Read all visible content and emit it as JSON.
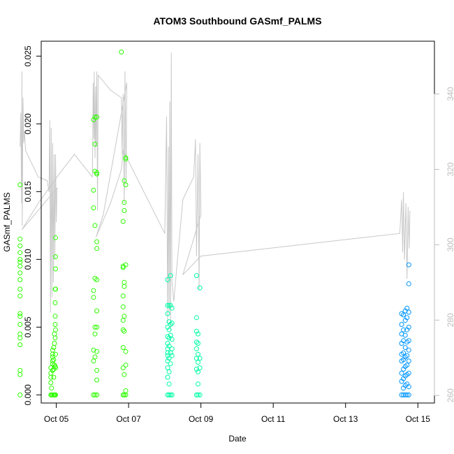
{
  "chart_data": {
    "type": "scatter",
    "title": "ATOM3 Southbound GASmf_PALMS",
    "xlabel": "Date",
    "ylabel": "GASmf_PALMS",
    "x_unit": "days since Oct 04 00:00 (date axis)",
    "xlim": [
      "Oct 04 14:00",
      "Oct 15 11:00"
    ],
    "x_ticks": [
      {
        "label": "Oct 05",
        "value": 1
      },
      {
        "label": "Oct 07",
        "value": 3
      },
      {
        "label": "Oct 09",
        "value": 5
      },
      {
        "label": "Oct 11",
        "value": 7
      },
      {
        "label": "Oct 13",
        "value": 9
      },
      {
        "label": "Oct 15",
        "value": 11
      }
    ],
    "ylim": [
      -0.0006,
      0.0261
    ],
    "y_ticks": [
      0.0,
      0.005,
      0.01,
      0.015,
      0.02,
      0.025
    ],
    "y_tick_labels": [
      "0.000",
      "0.005",
      "0.010",
      "0.015",
      "0.020",
      "0.025"
    ],
    "right_axis": {
      "ylim": [
        258,
        354
      ],
      "ticks": [
        260,
        280,
        300,
        320,
        340
      ],
      "color": "#bebebe"
    },
    "grid": false,
    "legend": "none",
    "series": [
      {
        "color": "#2dff00",
        "points": [
          [
            0.0,
            0.0155
          ],
          [
            0.0,
            0.0115
          ],
          [
            0.0,
            0.011
          ],
          [
            0.0,
            0.0105
          ],
          [
            0.0,
            0.01
          ],
          [
            0.0,
            0.0098
          ],
          [
            0.0,
            0.0095
          ],
          [
            0.0,
            0.009
          ],
          [
            0.0,
            0.0085
          ],
          [
            0.0,
            0.0078
          ],
          [
            0.0,
            0.0073
          ],
          [
            0.0,
            0.006
          ],
          [
            0.0,
            0.0058
          ],
          [
            0.0,
            0.0052
          ],
          [
            0.0,
            0.0045
          ],
          [
            0.0,
            0.0042
          ],
          [
            0.0,
            0.0037
          ],
          [
            0.0,
            0.0018
          ],
          [
            0.0,
            0.0015
          ],
          [
            0.0,
            0.0
          ],
          [
            0.85,
            0.0009
          ],
          [
            0.85,
            0.0013
          ],
          [
            0.85,
            0.0016
          ],
          [
            0.85,
            0.002
          ],
          [
            0.85,
            0.0
          ],
          [
            0.87,
            0.0005
          ],
          [
            0.87,
            0.0
          ],
          [
            0.9,
            0.0025
          ],
          [
            0.9,
            0.0028
          ],
          [
            0.9,
            0.003
          ],
          [
            0.9,
            0.0033
          ],
          [
            0.9,
            0.0018
          ],
          [
            0.9,
            0.0023
          ],
          [
            0.9,
            0.0
          ],
          [
            0.93,
            0.0035
          ],
          [
            0.93,
            0.0026
          ],
          [
            0.93,
            0.0019
          ],
          [
            0.93,
            0.0013
          ],
          [
            0.93,
            0.0
          ],
          [
            0.95,
            0.0045
          ],
          [
            0.95,
            0.0038
          ],
          [
            0.95,
            0.0022
          ],
          [
            0.95,
            0.0
          ],
          [
            0.97,
            0.0078
          ],
          [
            0.97,
            0.0068
          ],
          [
            0.97,
            0.0058
          ],
          [
            0.97,
            0.0052
          ],
          [
            0.97,
            0.0042
          ],
          [
            0.97,
            0.0021
          ],
          [
            0.97,
            0.0
          ],
          [
            0.98,
            0.0116
          ],
          [
            0.98,
            0.0102
          ],
          [
            0.98,
            0.0093
          ],
          [
            0.98,
            0.0078
          ],
          [
            0.98,
            0.0048
          ],
          [
            0.98,
            0.003
          ],
          [
            0.98,
            0.002
          ],
          [
            0.98,
            0.0
          ],
          [
            2.03,
            0.0203
          ],
          [
            2.03,
            0.0151
          ],
          [
            2.03,
            0.0138
          ],
          [
            2.03,
            0.0077
          ],
          [
            2.03,
            0.0072
          ],
          [
            2.03,
            0.0033
          ],
          [
            2.03,
            0.0025
          ],
          [
            2.03,
            0.0
          ],
          [
            2.07,
            0.0205
          ],
          [
            2.07,
            0.0185
          ],
          [
            2.07,
            0.0165
          ],
          [
            2.07,
            0.0125
          ],
          [
            2.07,
            0.0086
          ],
          [
            2.07,
            0.005
          ],
          [
            2.07,
            0.0045
          ],
          [
            2.07,
            0.0028
          ],
          [
            2.07,
            0.0
          ],
          [
            2.12,
            0.0205
          ],
          [
            2.12,
            0.0164
          ],
          [
            2.12,
            0.0163
          ],
          [
            2.12,
            0.0113
          ],
          [
            2.12,
            0.0108
          ],
          [
            2.12,
            0.0085
          ],
          [
            2.12,
            0.0062
          ],
          [
            2.12,
            0.005
          ],
          [
            2.12,
            0.0032
          ],
          [
            2.12,
            0.0018
          ],
          [
            2.12,
            0.0011
          ],
          [
            2.12,
            0.0
          ],
          [
            2.8,
            0.0253
          ],
          [
            2.85,
            0.0128
          ],
          [
            2.85,
            0.0095
          ],
          [
            2.85,
            0.0094
          ],
          [
            2.85,
            0.0073
          ],
          [
            2.85,
            0.0065
          ],
          [
            2.85,
            0.0055
          ],
          [
            2.85,
            0.0048
          ],
          [
            2.85,
            0.0035
          ],
          [
            2.85,
            0.002
          ],
          [
            2.85,
            0.0
          ],
          [
            2.88,
            0.0158
          ],
          [
            2.88,
            0.0142
          ],
          [
            2.88,
            0.0136
          ],
          [
            2.88,
            0.0083
          ],
          [
            2.88,
            0.008
          ],
          [
            2.88,
            0.0058
          ],
          [
            2.88,
            0.0047
          ],
          [
            2.88,
            0.0015
          ],
          [
            2.88,
            0.0
          ],
          [
            2.92,
            0.0175
          ],
          [
            2.92,
            0.0174
          ],
          [
            2.92,
            0.0155
          ],
          [
            2.92,
            0.0096
          ],
          [
            2.92,
            0.0032
          ],
          [
            2.92,
            0.0022
          ],
          [
            2.92,
            0.0003
          ],
          [
            2.92,
            0.0
          ]
        ]
      },
      {
        "color": "#00ffa6",
        "points": [
          [
            4.08,
            0.0085
          ],
          [
            4.08,
            0.0066
          ],
          [
            4.08,
            0.006
          ],
          [
            4.08,
            0.005
          ],
          [
            4.08,
            0.0043
          ],
          [
            4.08,
            0.0038
          ],
          [
            4.08,
            0.0034
          ],
          [
            4.08,
            0.0031
          ],
          [
            4.08,
            0.0029
          ],
          [
            4.08,
            0.0025
          ],
          [
            4.08,
            0.002
          ],
          [
            4.08,
            0.0013
          ],
          [
            4.08,
            0.0
          ],
          [
            4.12,
            0.0066
          ],
          [
            4.12,
            0.0054
          ],
          [
            4.12,
            0.0048
          ],
          [
            4.12,
            0.0042
          ],
          [
            4.12,
            0.0036
          ],
          [
            4.12,
            0.0027
          ],
          [
            4.12,
            0.0017
          ],
          [
            4.12,
            0.0008
          ],
          [
            4.12,
            0.0
          ],
          [
            4.16,
            0.0088
          ],
          [
            4.16,
            0.0066
          ],
          [
            4.16,
            0.0052
          ],
          [
            4.16,
            0.0044
          ],
          [
            4.16,
            0.0031
          ],
          [
            4.16,
            0.0023
          ],
          [
            4.16,
            0.0
          ],
          [
            4.2,
            0.0064
          ],
          [
            4.2,
            0.0053
          ],
          [
            4.2,
            0.0041
          ],
          [
            4.2,
            0.0034
          ],
          [
            4.2,
            0.0029
          ],
          [
            4.2,
            0.0
          ],
          [
            4.88,
            0.0088
          ],
          [
            4.88,
            0.0057
          ],
          [
            4.88,
            0.0047
          ],
          [
            4.88,
            0.0039
          ],
          [
            4.88,
            0.0034
          ],
          [
            4.88,
            0.0027
          ],
          [
            4.88,
            0.0019
          ],
          [
            4.88,
            0.0
          ],
          [
            4.92,
            0.0045
          ],
          [
            4.92,
            0.0038
          ],
          [
            4.92,
            0.003
          ],
          [
            4.92,
            0.0024
          ],
          [
            4.92,
            0.0017
          ],
          [
            4.92,
            0.0008
          ],
          [
            4.92,
            0.0
          ],
          [
            4.97,
            0.0079
          ],
          [
            4.97,
            0.0027
          ],
          [
            4.97,
            0.002
          ],
          [
            4.97,
            0.0
          ]
        ]
      },
      {
        "color": "#0096ff",
        "points": [
          [
            10.55,
            0.006
          ],
          [
            10.55,
            0.0052
          ],
          [
            10.55,
            0.0045
          ],
          [
            10.55,
            0.0038
          ],
          [
            10.55,
            0.003
          ],
          [
            10.55,
            0.0025
          ],
          [
            10.55,
            0.0016
          ],
          [
            10.55,
            0.001
          ],
          [
            10.55,
            0.0
          ],
          [
            10.6,
            0.0059
          ],
          [
            10.6,
            0.0048
          ],
          [
            10.6,
            0.004
          ],
          [
            10.6,
            0.0031
          ],
          [
            10.6,
            0.0026
          ],
          [
            10.6,
            0.0019
          ],
          [
            10.6,
            0.0012
          ],
          [
            10.6,
            0.0005
          ],
          [
            10.6,
            0.0
          ],
          [
            10.65,
            0.0062
          ],
          [
            10.65,
            0.0055
          ],
          [
            10.65,
            0.0044
          ],
          [
            10.65,
            0.0035
          ],
          [
            10.65,
            0.0028
          ],
          [
            10.65,
            0.0021
          ],
          [
            10.65,
            0.0014
          ],
          [
            10.65,
            0.0007
          ],
          [
            10.65,
            0.0
          ],
          [
            10.7,
            0.0064
          ],
          [
            10.7,
            0.0057
          ],
          [
            10.7,
            0.0048
          ],
          [
            10.7,
            0.0039
          ],
          [
            10.7,
            0.0029
          ],
          [
            10.7,
            0.0022
          ],
          [
            10.7,
            0.0015
          ],
          [
            10.7,
            0.0008
          ],
          [
            10.7,
            0.0
          ],
          [
            10.75,
            0.0096
          ],
          [
            10.75,
            0.0082
          ],
          [
            10.75,
            0.0061
          ],
          [
            10.75,
            0.005
          ],
          [
            10.75,
            0.004
          ],
          [
            10.75,
            0.0033
          ],
          [
            10.75,
            0.0025
          ],
          [
            10.75,
            0.0016
          ],
          [
            10.75,
            0.0006
          ],
          [
            10.75,
            0.0
          ]
        ]
      }
    ],
    "line_series": {
      "color": "#c8c8c8",
      "axis": "right",
      "points": [
        [
          0.0,
          326
        ],
        [
          0.02,
          335
        ],
        [
          0.04,
          311
        ],
        [
          0.05,
          346
        ],
        [
          0.06,
          305
        ],
        [
          0.08,
          339
        ],
        [
          0.1,
          327
        ],
        [
          0.12,
          330
        ],
        [
          0.15,
          325
        ],
        [
          0.3,
          322
        ],
        [
          0.5,
          318
        ],
        [
          0.75,
          317
        ],
        [
          0.8,
          314
        ],
        [
          0.82,
          333
        ],
        [
          0.84,
          282
        ],
        [
          0.86,
          331
        ],
        [
          0.88,
          286
        ],
        [
          0.9,
          327
        ],
        [
          0.92,
          290
        ],
        [
          0.94,
          324
        ],
        [
          0.96,
          296
        ],
        [
          0.98,
          324
        ],
        [
          1.0,
          306
        ],
        [
          1.02,
          315
        ],
        [
          0.05,
          304
        ],
        [
          0.5,
          311
        ],
        [
          1.1,
          319
        ],
        [
          1.5,
          324
        ],
        [
          2.0,
          318
        ],
        [
          2.02,
          343
        ],
        [
          2.04,
          328
        ],
        [
          2.05,
          346
        ],
        [
          2.07,
          323
        ],
        [
          2.09,
          342
        ],
        [
          2.1,
          326
        ],
        [
          2.12,
          346
        ],
        [
          2.14,
          309
        ],
        [
          2.16,
          345
        ],
        [
          2.5,
          341
        ],
        [
          2.8,
          339
        ],
        [
          2.82,
          324
        ],
        [
          2.85,
          340
        ],
        [
          2.88,
          311
        ],
        [
          2.9,
          346
        ],
        [
          2.93,
          316
        ],
        [
          2.95,
          343
        ],
        [
          2.3,
          308
        ],
        [
          2.1,
          302
        ],
        [
          2.5,
          311
        ],
        [
          2.8,
          320
        ],
        [
          2.85,
          325
        ],
        [
          4.0,
          303
        ],
        [
          4.05,
          334
        ],
        [
          4.08,
          279
        ],
        [
          4.1,
          326
        ],
        [
          4.12,
          282
        ],
        [
          4.14,
          338
        ],
        [
          4.16,
          277
        ],
        [
          4.18,
          351
        ],
        [
          4.2,
          290
        ],
        [
          4.25,
          285
        ],
        [
          4.5,
          312
        ],
        [
          4.8,
          318
        ],
        [
          4.85,
          328
        ],
        [
          4.88,
          297
        ],
        [
          4.92,
          324
        ],
        [
          4.95,
          288
        ],
        [
          4.97,
          327
        ],
        [
          5.0,
          308
        ],
        [
          4.5,
          292
        ],
        [
          5.0,
          297
        ],
        [
          10.5,
          303
        ],
        [
          10.55,
          312
        ],
        [
          10.58,
          298
        ],
        [
          10.6,
          314
        ],
        [
          10.63,
          296
        ],
        [
          10.67,
          311
        ],
        [
          10.7,
          291
        ],
        [
          10.73,
          310
        ],
        [
          10.76,
          299
        ],
        [
          10.78,
          309
        ]
      ]
    }
  }
}
